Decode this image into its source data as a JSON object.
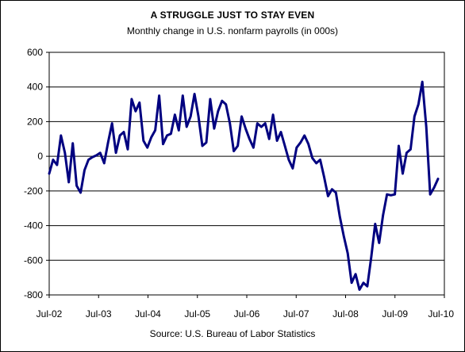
{
  "chart_data": {
    "type": "line",
    "title": "A STRUGGLE JUST TO STAY EVEN",
    "subtitle": "Monthly change in U.S. nonfarm payrolls (in 000s)",
    "source": "Source: U.S. Bureau of Labor Statistics",
    "xlabel": "",
    "ylabel": "",
    "ylim": [
      -800,
      600
    ],
    "yticks": [
      "600",
      "400",
      "200",
      "0",
      "-200",
      "-400",
      "-600",
      "-800"
    ],
    "yticks_values": [
      600,
      400,
      200,
      0,
      -200,
      -400,
      -600,
      -800
    ],
    "xticks": [
      "Jul-02",
      "Jul-03",
      "Jul-04",
      "Jul-05",
      "Jul-06",
      "Jul-07",
      "Jul-08",
      "Jul-09",
      "Jul-10"
    ],
    "xrange": [
      "2002-07",
      "2010-07"
    ],
    "grid": {
      "horizontal": true,
      "vertical": false
    },
    "line_color": "#000080",
    "series": [
      {
        "values": [
          -100,
          -20,
          -50,
          120,
          20,
          -150,
          75,
          -170,
          -210,
          -80,
          -20,
          -5,
          5,
          20,
          -40,
          80,
          190,
          20,
          120,
          140,
          40,
          330,
          260,
          310,
          90,
          50,
          110,
          150,
          350,
          70,
          120,
          130,
          240,
          150,
          350,
          170,
          230,
          360,
          230,
          60,
          80,
          330,
          160,
          260,
          320,
          300,
          190,
          30,
          60,
          230,
          160,
          100,
          50,
          190,
          170,
          190,
          100,
          240,
          90,
          140,
          60,
          -20,
          -70,
          50,
          80,
          120,
          70,
          -10,
          -40,
          -20,
          -120,
          -230,
          -190,
          -210,
          -350,
          -460,
          -560,
          -730,
          -680,
          -770,
          -730,
          -750,
          -580,
          -390,
          -500,
          -340,
          -220,
          -225,
          -220,
          60,
          -100,
          20,
          40,
          230,
          300,
          430,
          170,
          -220,
          -180,
          -130
        ]
      }
    ]
  }
}
